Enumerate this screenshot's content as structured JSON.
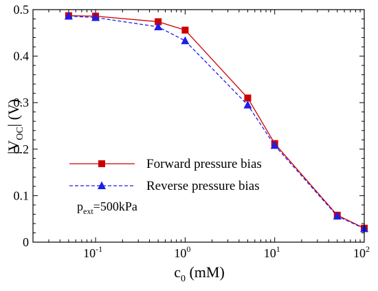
{
  "chart_data": {
    "type": "line",
    "xscale": "log",
    "xlim": [
      0.02,
      100
    ],
    "ylim": [
      0,
      0.5
    ],
    "xlabel": {
      "main": "c",
      "sub": "0",
      "rest": " (mM)"
    },
    "ylabel": {
      "pre": "|V",
      "sub": "OC",
      "post": "| (V)"
    },
    "xticks": [
      {
        "value": 0.1,
        "base": "10",
        "exp": "-1"
      },
      {
        "value": 1,
        "base": "10",
        "exp": "0"
      },
      {
        "value": 10,
        "base": "10",
        "exp": "1"
      },
      {
        "value": 100,
        "base": "10",
        "exp": "2"
      }
    ],
    "yticks": [
      {
        "value": 0,
        "label": "0"
      },
      {
        "value": 0.1,
        "label": "0.1"
      },
      {
        "value": 0.2,
        "label": "0.2"
      },
      {
        "value": 0.3,
        "label": "0.3"
      },
      {
        "value": 0.4,
        "label": "0.4"
      },
      {
        "value": 0.5,
        "label": "0.5"
      }
    ],
    "x": [
      0.05,
      0.1,
      0.5,
      1,
      5,
      10,
      50,
      100
    ],
    "series": [
      {
        "name": "Forward pressure bias",
        "color": "#cc0000",
        "marker": "square",
        "dash": "solid",
        "values": [
          0.487,
          0.486,
          0.474,
          0.456,
          0.31,
          0.212,
          0.058,
          0.03
        ]
      },
      {
        "name": "Reverse pressure bias",
        "color": "#1f1fe6",
        "marker": "triangle",
        "dash": "dashed",
        "values": [
          0.486,
          0.483,
          0.463,
          0.433,
          0.295,
          0.208,
          0.056,
          0.029
        ]
      }
    ],
    "legend_position": "center-left",
    "annotation": {
      "pre": "p",
      "sub": "ext",
      "post": "=500kPa"
    },
    "grid": false
  }
}
